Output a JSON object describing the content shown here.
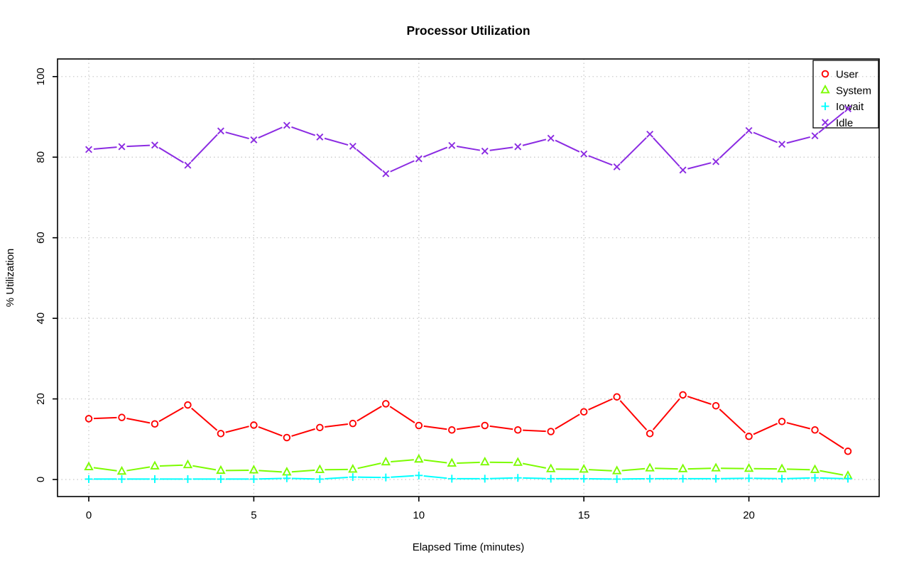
{
  "chart_data": {
    "type": "line",
    "title": "Processor Utilization",
    "xlabel": "Elapsed Time (minutes)",
    "ylabel": "% Utilization",
    "x": [
      0,
      1,
      2,
      3,
      4,
      5,
      6,
      7,
      8,
      9,
      10,
      11,
      12,
      13,
      14,
      15,
      16,
      17,
      18,
      19,
      20,
      21,
      22,
      23
    ],
    "series": [
      {
        "name": "User",
        "color": "#ff0000",
        "marker": "circle",
        "values": [
          15.1,
          15.4,
          13.8,
          18.5,
          11.4,
          13.5,
          10.4,
          12.9,
          13.9,
          18.8,
          13.4,
          12.3,
          13.4,
          12.3,
          11.9,
          16.8,
          20.5,
          11.4,
          21.0,
          18.3,
          10.7,
          14.4,
          12.3,
          7.0
        ]
      },
      {
        "name": "System",
        "color": "#7cfc00",
        "marker": "triangle",
        "values": [
          3.1,
          2.0,
          3.3,
          3.6,
          2.2,
          2.3,
          1.8,
          2.4,
          2.5,
          4.3,
          5.0,
          4.0,
          4.3,
          4.2,
          2.6,
          2.5,
          2.1,
          2.8,
          2.6,
          2.8,
          2.7,
          2.6,
          2.4,
          0.9
        ]
      },
      {
        "name": "Iowait",
        "color": "#00ffff",
        "marker": "plus",
        "values": [
          0.1,
          0.1,
          0.1,
          0.1,
          0.1,
          0.1,
          0.3,
          0.1,
          0.6,
          0.5,
          1.0,
          0.2,
          0.2,
          0.4,
          0.2,
          0.2,
          0.1,
          0.2,
          0.2,
          0.2,
          0.3,
          0.2,
          0.4,
          0.2
        ]
      },
      {
        "name": "Idle",
        "color": "#8b2be2",
        "marker": "x",
        "values": [
          81.9,
          82.6,
          83.0,
          78.0,
          86.5,
          84.3,
          87.9,
          85.0,
          82.7,
          75.9,
          79.6,
          82.9,
          81.5,
          82.6,
          84.7,
          80.8,
          77.6,
          85.7,
          76.8,
          78.9,
          86.6,
          83.2,
          85.3,
          92.0
        ]
      }
    ],
    "xticks": [
      0,
      5,
      10,
      15,
      20
    ],
    "yticks": [
      0,
      20,
      40,
      60,
      80,
      100
    ],
    "xlim": [
      0,
      23
    ],
    "ylim": [
      0,
      100
    ],
    "grid": true,
    "legend_position": "top-right",
    "grid_color": "#c6c6c6",
    "axis_color": "#000000"
  }
}
